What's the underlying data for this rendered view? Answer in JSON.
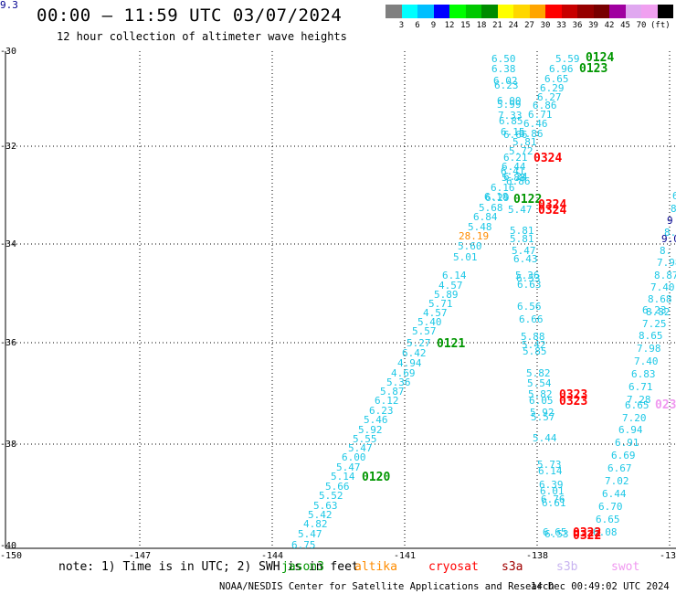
{
  "header": {
    "title": "00:00 – 11:59 UTC 03/07/2024",
    "subtitle": "12 hour collection of altimeter wave heights"
  },
  "colorbar": {
    "colors": [
      "#808080",
      "#00ffff",
      "#00bfff",
      "#0000ff",
      "#00ff00",
      "#00c800",
      "#008c00",
      "#ffff00",
      "#ffd700",
      "#ffa500",
      "#ff0000",
      "#c80000",
      "#960000",
      "#780000",
      "#a000a0",
      "#e0a8f0",
      "#f0a0f0",
      "#000000"
    ],
    "labels": [
      "3",
      "6",
      "9",
      "12",
      "15",
      "18",
      "21",
      "24",
      "27",
      "30",
      "33",
      "36",
      "39",
      "42",
      "45",
      "70"
    ],
    "unit": "(ft)"
  },
  "axes": {
    "lat_labels": [
      "-30",
      "-32",
      "-34",
      "-36",
      "-38",
      "-40"
    ],
    "lon_labels": [
      "-150",
      "-147",
      "-144",
      "-141",
      "-138",
      "-13"
    ]
  },
  "colors": {
    "measurement": "#1ec8e6",
    "cryosat_pass": "#ff0000",
    "jason_pass": "#009600",
    "swot_pass": "#f098f0",
    "navy": "#000090",
    "highlight": "#ff8c00"
  },
  "passes": [
    {
      "text": "0124",
      "color": "#009600"
    },
    {
      "text": "0123",
      "color": "#009600"
    },
    {
      "text": "0324",
      "color": "#ff0000"
    },
    {
      "text": "0122",
      "color": "#009600"
    },
    {
      "text": "0324",
      "color": "#ff0000"
    },
    {
      "text": "0324",
      "color": "#ff0000"
    },
    {
      "text": "0121",
      "color": "#009600"
    },
    {
      "text": "0323",
      "color": "#ff0000"
    },
    {
      "text": "0323",
      "color": "#ff0000"
    },
    {
      "text": "0120",
      "color": "#009600"
    },
    {
      "text": "0322",
      "color": "#ff0000"
    },
    {
      "text": "0322",
      "color": "#ff0000"
    },
    {
      "text": "023",
      "color": "#f098f0"
    }
  ],
  "measurements": [
    {
      "text": "6.50",
      "c": "m"
    },
    {
      "text": "6.38",
      "c": "m"
    },
    {
      "text": "6.02",
      "c": "m"
    },
    {
      "text": "6.23",
      "c": "m"
    },
    {
      "text": "6.00",
      "c": "m"
    },
    {
      "text": "5.99",
      "c": "m"
    },
    {
      "text": "7.33",
      "c": "m"
    },
    {
      "text": "6.85",
      "c": "m"
    },
    {
      "text": "6.15",
      "c": "m"
    },
    {
      "text": "6.66",
      "c": "m"
    },
    {
      "text": "5.81",
      "c": "m"
    },
    {
      "text": "5.59",
      "c": "m"
    },
    {
      "text": "6.96",
      "c": "m"
    },
    {
      "text": "6.65",
      "c": "m"
    },
    {
      "text": "6.29",
      "c": "m"
    },
    {
      "text": "6.27",
      "c": "m"
    },
    {
      "text": "6.86",
      "c": "m"
    },
    {
      "text": "6.71",
      "c": "m"
    },
    {
      "text": "6.46",
      "c": "m"
    },
    {
      "text": "6.86",
      "c": "m"
    },
    {
      "text": "5.72",
      "c": "m"
    },
    {
      "text": "6.21",
      "c": "m"
    },
    {
      "text": "6.44",
      "c": "m"
    },
    {
      "text": "6.41",
      "c": "m"
    },
    {
      "text": "6.24",
      "c": "m"
    },
    {
      "text": "6.86",
      "c": "m"
    },
    {
      "text": "5.88",
      "c": "m"
    },
    {
      "text": "6.16",
      "c": "m"
    },
    {
      "text": "6.18",
      "c": "m"
    },
    {
      "text": "6.29",
      "c": "m"
    },
    {
      "text": "5.47",
      "c": "m"
    },
    {
      "text": "5.68",
      "c": "m"
    },
    {
      "text": "6.84",
      "c": "m"
    },
    {
      "text": "5.48",
      "c": "m"
    },
    {
      "text": "28.19",
      "c": "h"
    },
    {
      "text": "5.60",
      "c": "m"
    },
    {
      "text": "5.81",
      "c": "m"
    },
    {
      "text": "5.01",
      "c": "m"
    },
    {
      "text": "5.81",
      "c": "m"
    },
    {
      "text": "5.47",
      "c": "m"
    },
    {
      "text": "6.43",
      "c": "m"
    },
    {
      "text": "6.14",
      "c": "m"
    },
    {
      "text": "4.57",
      "c": "m"
    },
    {
      "text": "5.89",
      "c": "m"
    },
    {
      "text": "5.71",
      "c": "m"
    },
    {
      "text": "4.57",
      "c": "m"
    },
    {
      "text": "5.40",
      "c": "m"
    },
    {
      "text": "5.57",
      "c": "m"
    },
    {
      "text": "5.27",
      "c": "m"
    },
    {
      "text": "6.42",
      "c": "m"
    },
    {
      "text": "4.94",
      "c": "m"
    },
    {
      "text": "4.69",
      "c": "m"
    },
    {
      "text": "5.36",
      "c": "m"
    },
    {
      "text": "5.87",
      "c": "m"
    },
    {
      "text": "6.12",
      "c": "m"
    },
    {
      "text": "6.23",
      "c": "m"
    },
    {
      "text": "5.46",
      "c": "m"
    },
    {
      "text": "5.92",
      "c": "m"
    },
    {
      "text": "5.55",
      "c": "m"
    },
    {
      "text": "5.47",
      "c": "m"
    },
    {
      "text": "6.00",
      "c": "m"
    },
    {
      "text": "5.47",
      "c": "m"
    },
    {
      "text": "5.14",
      "c": "m"
    },
    {
      "text": "5.66",
      "c": "m"
    },
    {
      "text": "5.52",
      "c": "m"
    },
    {
      "text": "5.63",
      "c": "m"
    },
    {
      "text": "5.42",
      "c": "m"
    },
    {
      "text": "4.82",
      "c": "m"
    },
    {
      "text": "5.47",
      "c": "m"
    },
    {
      "text": "6.75",
      "c": "m"
    },
    {
      "text": "5.36",
      "c": "m"
    },
    {
      "text": "6.53",
      "c": "m"
    },
    {
      "text": "6.63",
      "c": "m"
    },
    {
      "text": "6.56",
      "c": "m"
    },
    {
      "text": "6.66",
      "c": "m"
    },
    {
      "text": "5.88",
      "c": "m"
    },
    {
      "text": "5.42",
      "c": "m"
    },
    {
      "text": "5.85",
      "c": "m"
    },
    {
      "text": "5.82",
      "c": "m"
    },
    {
      "text": "5.54",
      "c": "m"
    },
    {
      "text": "5.82",
      "c": "m"
    },
    {
      "text": "6.05",
      "c": "m"
    },
    {
      "text": "5.92",
      "c": "m"
    },
    {
      "text": "5.57",
      "c": "m"
    },
    {
      "text": "5.44",
      "c": "m"
    },
    {
      "text": "5.73",
      "c": "m"
    },
    {
      "text": "6.14",
      "c": "m"
    },
    {
      "text": "6.39",
      "c": "m"
    },
    {
      "text": "6.01",
      "c": "m"
    },
    {
      "text": "6.76",
      "c": "m"
    },
    {
      "text": "6.61",
      "c": "m"
    },
    {
      "text": "6.65",
      "c": "m"
    },
    {
      "text": "6.53",
      "c": "m"
    },
    {
      "text": "6.23",
      "c": "m"
    },
    {
      "text": "7.98",
      "c": "m"
    },
    {
      "text": "8.87",
      "c": "m"
    },
    {
      "text": "7.40",
      "c": "m"
    },
    {
      "text": "8.68",
      "c": "m"
    },
    {
      "text": "8.82",
      "c": "m"
    },
    {
      "text": "7.25",
      "c": "m"
    },
    {
      "text": "8.65",
      "c": "m"
    },
    {
      "text": "7.98",
      "c": "m"
    },
    {
      "text": "7.40",
      "c": "m"
    },
    {
      "text": "6.83",
      "c": "m"
    },
    {
      "text": "6.71",
      "c": "m"
    },
    {
      "text": "7.28",
      "c": "m"
    },
    {
      "text": "6.65",
      "c": "m"
    },
    {
      "text": "7.20",
      "c": "m"
    },
    {
      "text": "6.94",
      "c": "m"
    },
    {
      "text": "6.91",
      "c": "m"
    },
    {
      "text": "6.69",
      "c": "m"
    },
    {
      "text": "6.67",
      "c": "m"
    },
    {
      "text": "7.02",
      "c": "m"
    },
    {
      "text": "6.44",
      "c": "m"
    },
    {
      "text": "6.70",
      "c": "m"
    },
    {
      "text": "6.65",
      "c": "m"
    },
    {
      "text": "6.08",
      "c": "m"
    },
    {
      "text": "6.05",
      "c": "m"
    },
    {
      "text": "8",
      "c": "m"
    },
    {
      "text": "9",
      "c": "n"
    },
    {
      "text": "8.",
      "c": "m"
    },
    {
      "text": "9.0",
      "c": "n"
    },
    {
      "text": "8.",
      "c": "m"
    },
    {
      "text": "9.3",
      "c": "n"
    }
  ],
  "footer": {
    "note": "note:  1) Time is in UTC; 2) SWH is in feet",
    "satellites": [
      {
        "name": "jason3",
        "color": "#009600"
      },
      {
        "name": "altika",
        "color": "#ff8c00"
      },
      {
        "name": "cryosat",
        "color": "#ff0000"
      },
      {
        "name": "s3a",
        "color": "#a00000"
      },
      {
        "name": "s3b",
        "color": "#c8b4f0"
      },
      {
        "name": "swot",
        "color": "#f098f0"
      }
    ],
    "credit": "NOAA/NESDIS Center for Satellite Applications and Research",
    "timestamp": "14 Dec 00:49:02 UTC 2024"
  }
}
